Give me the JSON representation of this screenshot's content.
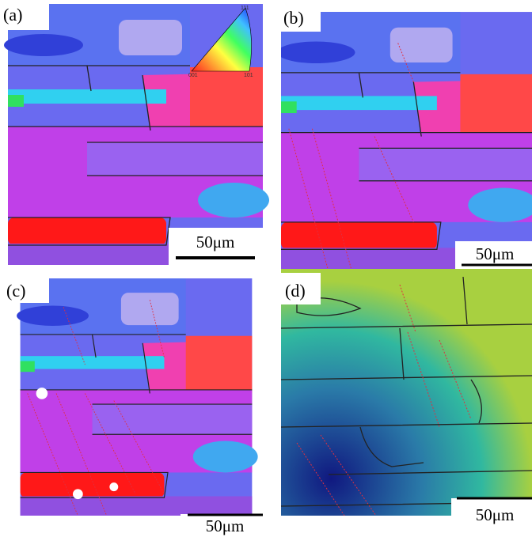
{
  "panels": [
    {
      "label": "(a)",
      "scale_bar": "50μm"
    },
    {
      "label": "(b)",
      "scale_bar": "50μm"
    },
    {
      "label": "(c)",
      "scale_bar": "50μm"
    },
    {
      "label": "(d)",
      "scale_bar": "50μm"
    }
  ],
  "color_key": {
    "top": "111",
    "bottom_left": "001",
    "bottom_right": "101"
  }
}
